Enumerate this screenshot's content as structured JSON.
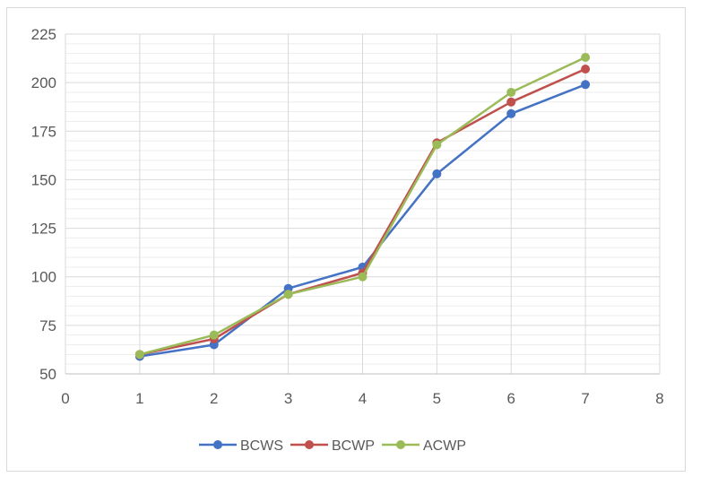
{
  "chart_data": {
    "type": "line",
    "title": "",
    "xlabel": "",
    "ylabel": "",
    "xlim": [
      0,
      8
    ],
    "ylim": [
      50,
      225
    ],
    "x_ticks": [
      "0",
      "1",
      "2",
      "3",
      "4",
      "5",
      "6",
      "7",
      "8"
    ],
    "y_ticks": [
      "50",
      "75",
      "100",
      "125",
      "150",
      "175",
      "200",
      "225"
    ],
    "y_tick_values": [
      50,
      75,
      100,
      125,
      150,
      175,
      200,
      225
    ],
    "x_tick_values": [
      0,
      1,
      2,
      3,
      4,
      5,
      6,
      7,
      8
    ],
    "minor_y_gridlines": true,
    "grid": true,
    "legend_position": "bottom",
    "x": [
      1,
      2,
      3,
      4,
      5,
      6,
      7
    ],
    "series": [
      {
        "name": "BCWS",
        "color": "#4472c4",
        "values": [
          59,
          65,
          94,
          105,
          153,
          184,
          199
        ]
      },
      {
        "name": "BCWP",
        "color": "#c0504d",
        "values": [
          60,
          68,
          91,
          102,
          169,
          190,
          207
        ]
      },
      {
        "name": "ACWP",
        "color": "#9bbb59",
        "values": [
          60,
          70,
          91,
          100,
          168,
          195,
          213
        ]
      }
    ]
  }
}
